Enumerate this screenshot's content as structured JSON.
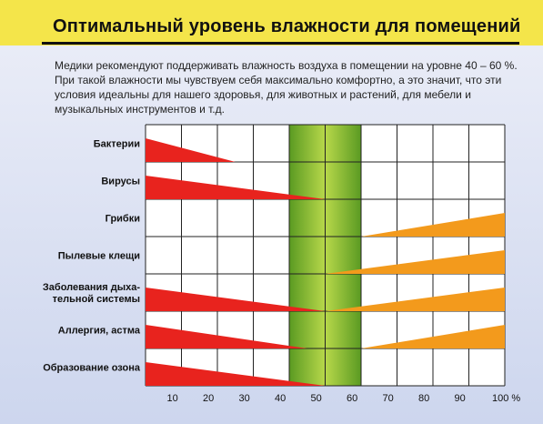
{
  "header": {
    "title": "Оптимальный уровень влажности для помещений"
  },
  "intro": {
    "text": "Медики рекомендуют поддерживать влажность воздуха в помещении на уровне 40 – 60 %. При такой влажности мы чувствуем себя максимально комфортно, а это значит, что эти условия идеальны для нашего здоровья, для животных и растений, для мебели и музыкальных инструментов и т.д."
  },
  "colors": {
    "red": "#e8231e",
    "orange": "#f39a1c",
    "green_band": "#7cb832",
    "background_panel": "#dfe4f3",
    "page": "#f4e54a"
  },
  "chart_data": {
    "type": "bar",
    "title": "",
    "xlabel": "",
    "ylabel": "",
    "xlim": [
      0,
      100
    ],
    "x_ticks": [
      "10",
      "20",
      "30",
      "40",
      "50",
      "60",
      "70",
      "80",
      "90",
      "100 %"
    ],
    "optimal_range": [
      40,
      60
    ],
    "grid": true,
    "rows": [
      {
        "label_lines": [
          "Бактерии"
        ],
        "segments": [
          {
            "color": "red",
            "from_x": 0,
            "to_x": 25,
            "start_height": 1.0,
            "end_height": 0.0
          }
        ]
      },
      {
        "label_lines": [
          "Вирусы"
        ],
        "segments": [
          {
            "color": "red",
            "from_x": 0,
            "to_x": 50,
            "start_height": 1.0,
            "end_height": 0.0
          }
        ]
      },
      {
        "label_lines": [
          "Грибки"
        ],
        "segments": [
          {
            "color": "orange",
            "from_x": 60,
            "to_x": 100,
            "start_height": 0.0,
            "end_height": 1.0
          }
        ]
      },
      {
        "label_lines": [
          "Пылевые клещи"
        ],
        "segments": [
          {
            "color": "orange",
            "from_x": 50,
            "to_x": 100,
            "start_height": 0.0,
            "end_height": 1.0
          }
        ]
      },
      {
        "label_lines": [
          "Заболевания дыха-",
          "тельной системы"
        ],
        "segments": [
          {
            "color": "red",
            "from_x": 0,
            "to_x": 50,
            "start_height": 1.0,
            "end_height": 0.0
          },
          {
            "color": "orange",
            "from_x": 50,
            "to_x": 100,
            "start_height": 0.0,
            "end_height": 1.0
          }
        ]
      },
      {
        "label_lines": [
          "Аллергия, астма"
        ],
        "segments": [
          {
            "color": "red",
            "from_x": 0,
            "to_x": 45,
            "start_height": 1.0,
            "end_height": 0.0
          },
          {
            "color": "orange",
            "from_x": 60,
            "to_x": 100,
            "start_height": 0.0,
            "end_height": 1.0
          }
        ]
      },
      {
        "label_lines": [
          "Образование озона"
        ],
        "segments": [
          {
            "color": "red",
            "from_x": 0,
            "to_x": 50,
            "start_height": 1.0,
            "end_height": 0.0
          }
        ]
      }
    ]
  }
}
